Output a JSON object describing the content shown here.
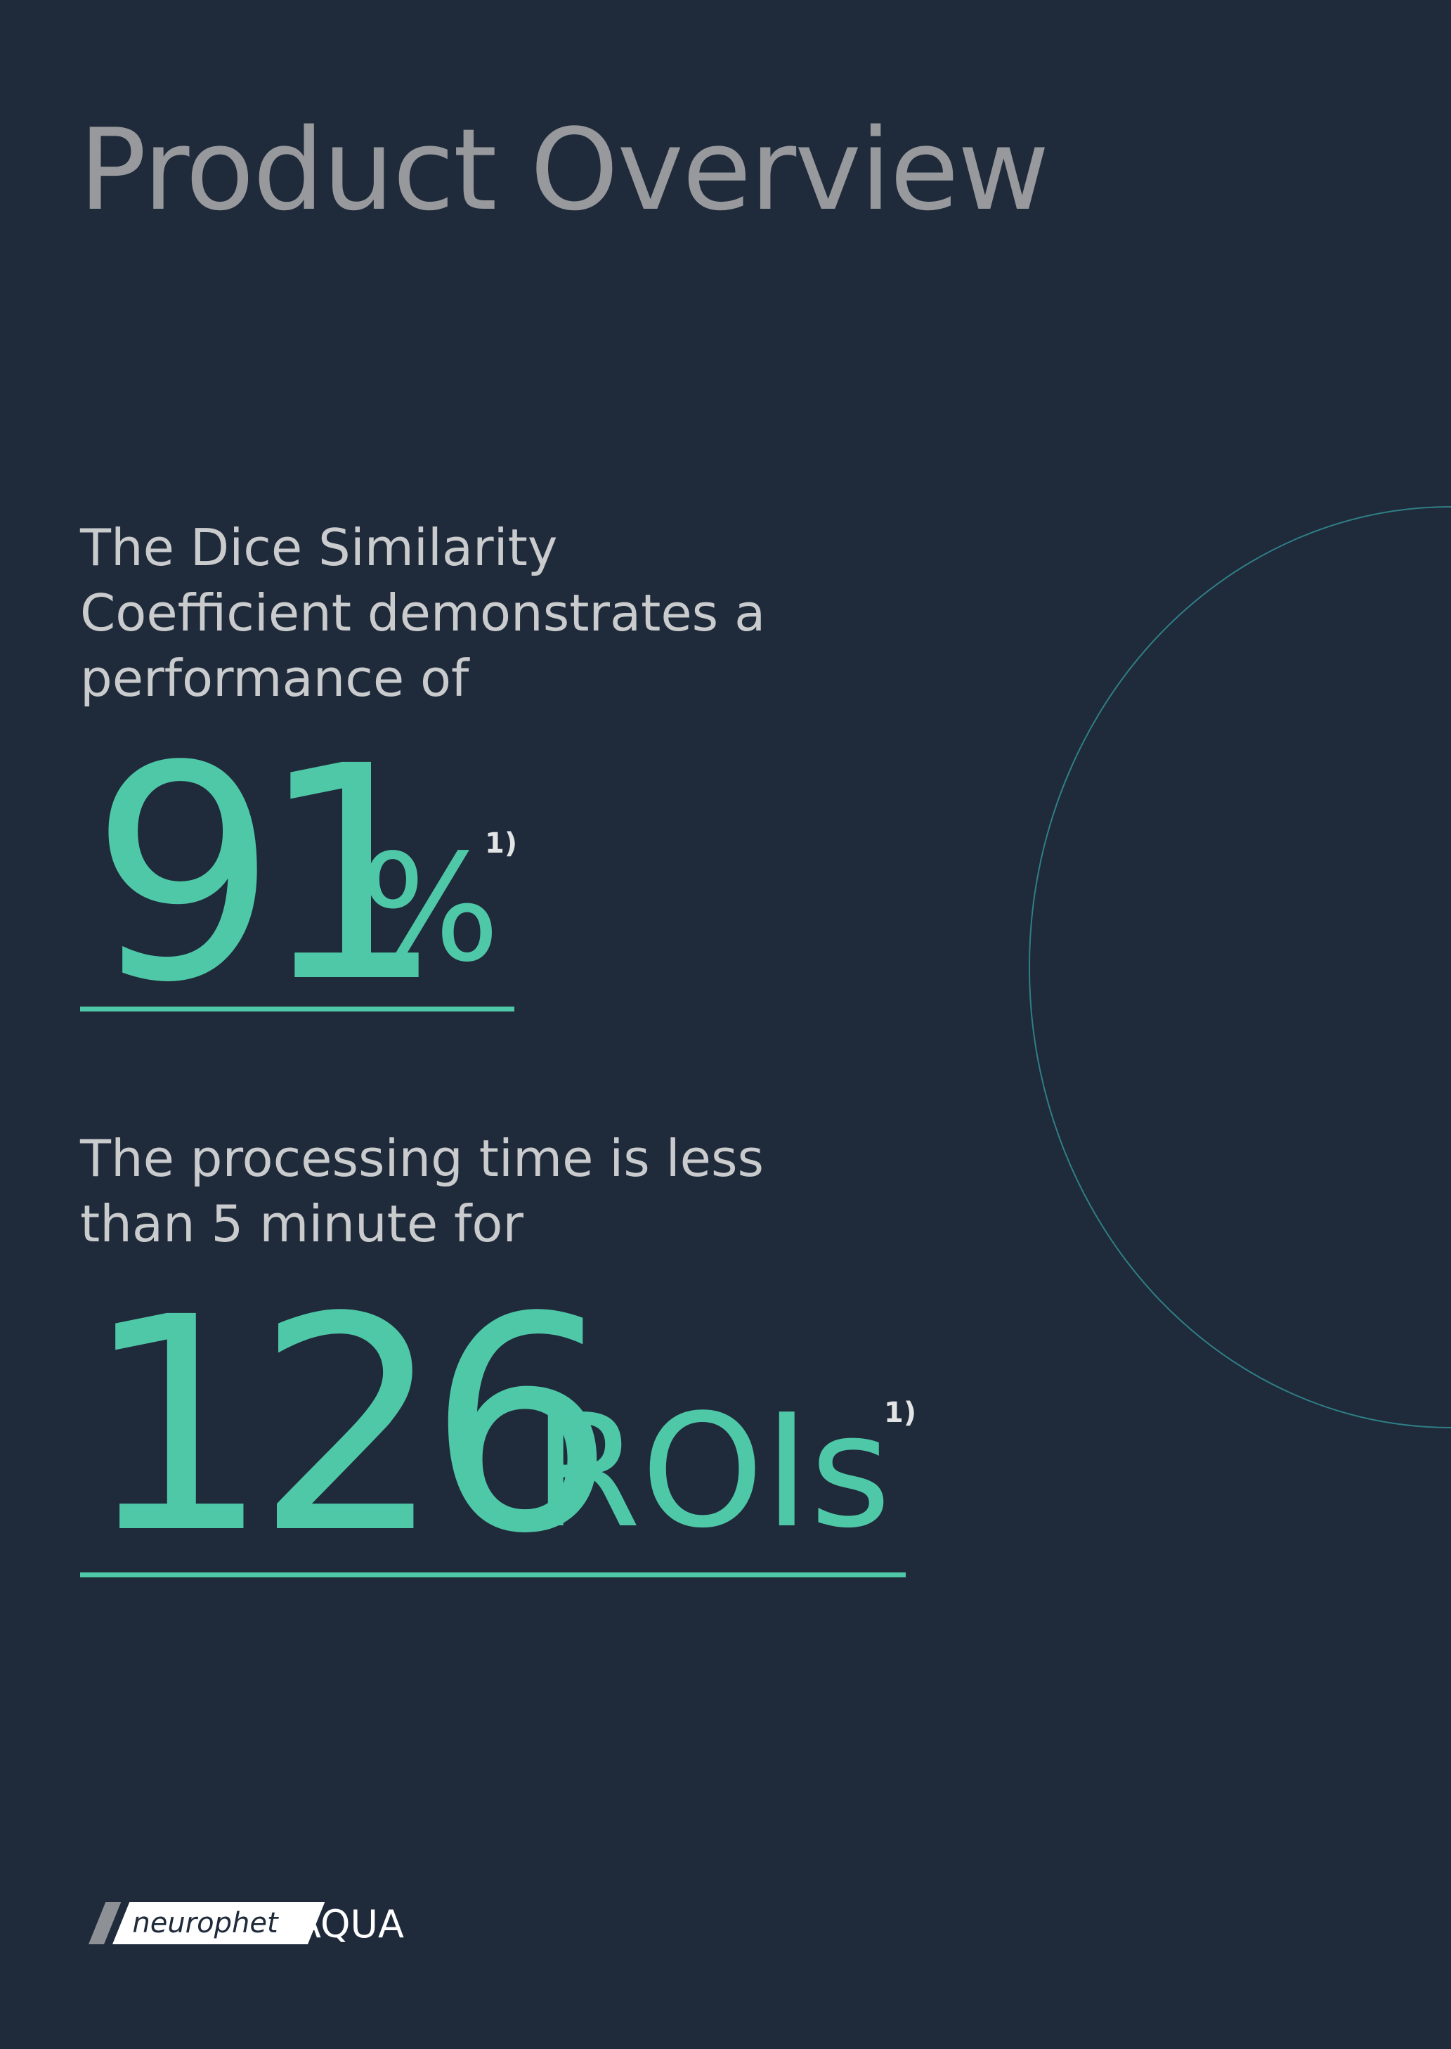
{
  "title": "Product Overview",
  "colors": {
    "background": "#1f2a3a",
    "title": "#97999c",
    "body_text": "#c9cbcd",
    "accent": "#4fc8a8",
    "footnote": "#e2e4e6",
    "arc": "#2f7f86",
    "logo_slant": "#8d9196",
    "logo_box": "#ffffff",
    "logo_brand_text": "#1f2a3a",
    "logo_product_text": "#ffffff"
  },
  "stats": [
    {
      "text": "The Dice Similarity Coefficient demonstrates a performance of",
      "value": "91",
      "unit": "%",
      "footnote": "1)"
    },
    {
      "text": "The processing time is less than 5 minute for",
      "value": "126",
      "unit": "ROIs",
      "footnote": "1)"
    }
  ],
  "footer": {
    "brand": "neurophet",
    "product": "AQUA",
    "logo_icon": "neurophet-logo-icon"
  }
}
